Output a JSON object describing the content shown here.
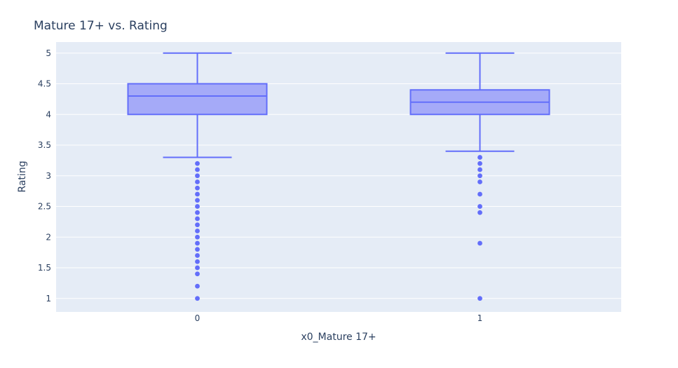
{
  "chart_data": {
    "type": "box",
    "title": "Mature 17+ vs. Rating",
    "xlabel": "x0_Mature 17+",
    "ylabel": "Rating",
    "categories": [
      "0",
      "1"
    ],
    "ylim": [
      0.78,
      5.18
    ],
    "yticks": [
      1,
      1.5,
      2,
      2.5,
      3,
      3.5,
      4,
      4.5,
      5
    ],
    "ytick_labels": [
      "1",
      "1.5",
      "2",
      "2.5",
      "3",
      "3.5",
      "4",
      "4.5",
      "5"
    ],
    "grid": true,
    "boxes": [
      {
        "category": "0",
        "lowerfence": 3.3,
        "q1": 4.0,
        "median": 4.3,
        "q3": 4.5,
        "upperfence": 5.0,
        "outliers": [
          3.2,
          3.1,
          3.0,
          2.9,
          2.8,
          2.7,
          2.6,
          2.5,
          2.4,
          2.3,
          2.2,
          2.1,
          2.0,
          1.9,
          1.8,
          1.7,
          1.6,
          1.5,
          1.4,
          1.2,
          1.0
        ]
      },
      {
        "category": "1",
        "lowerfence": 3.4,
        "q1": 4.0,
        "median": 4.2,
        "q3": 4.4,
        "upperfence": 5.0,
        "outliers": [
          3.3,
          3.2,
          3.1,
          3.0,
          2.9,
          2.7,
          2.5,
          2.4,
          1.9,
          1.0
        ]
      }
    ],
    "colors": {
      "plot_bg": "#e5ecf6",
      "grid": "#ffffff",
      "line": "#636efa",
      "fill": "#a5aaf8",
      "text": "#2a3f5f"
    }
  }
}
